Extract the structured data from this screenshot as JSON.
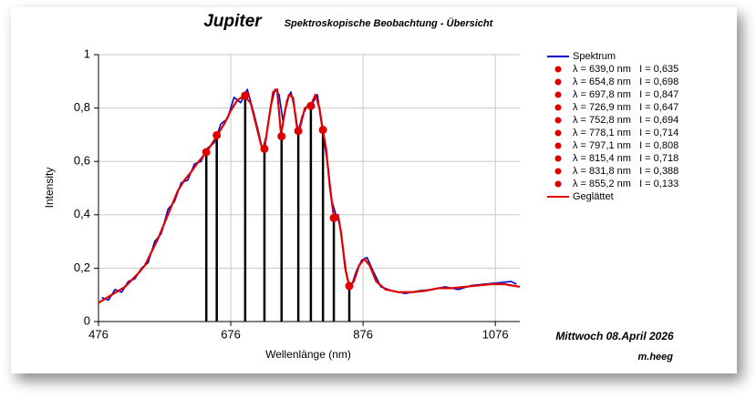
{
  "chart_data": {
    "type": "line",
    "title": "Jupiter",
    "subtitle": "Spektroskopische Beobachtung - Übersicht",
    "annotations": [
      "Mittwoch 08.April 2026",
      "m.heeg"
    ],
    "x_label": "Wellenlänge (nm)",
    "y_label": "Intensity",
    "xlim": [
      476,
      1113
    ],
    "ylim": [
      0,
      1
    ],
    "xticks": [
      476,
      676,
      876,
      1076
    ],
    "yticks": [
      0,
      {
        "value": 0.2,
        "label": "0,2"
      },
      {
        "value": 0.4,
        "label": "0,4"
      },
      {
        "value": 0.6,
        "label": "0,6"
      },
      {
        "value": 0.8,
        "label": "0,8"
      },
      1
    ],
    "grid": true,
    "stem_color": "#000000",
    "series": [
      {
        "name": "Spektrum",
        "style": "line",
        "color": "#0000cc",
        "x": [
          481,
          491,
          501,
          511,
          521,
          531,
          541,
          551,
          561,
          571,
          581,
          591,
          601,
          611,
          621,
          631,
          641,
          651,
          661,
          671,
          681,
          691,
          701,
          711,
          719,
          724,
          730,
          736,
          743,
          749,
          755,
          761,
          767,
          773,
          778,
          784,
          792,
          800,
          807,
          812,
          817,
          823,
          829,
          835,
          840,
          846,
          852,
          858,
          866,
          874,
          882,
          891,
          903,
          920,
          940,
          960,
          980,
          1000,
          1020,
          1040,
          1060,
          1080,
          1100,
          1108
        ],
        "values": [
          0.09,
          0.08,
          0.12,
          0.11,
          0.15,
          0.16,
          0.2,
          0.22,
          0.3,
          0.33,
          0.42,
          0.45,
          0.52,
          0.53,
          0.59,
          0.6,
          0.65,
          0.67,
          0.74,
          0.76,
          0.84,
          0.82,
          0.87,
          0.78,
          0.7,
          0.64,
          0.7,
          0.8,
          0.87,
          0.85,
          0.75,
          0.83,
          0.86,
          0.79,
          0.71,
          0.77,
          0.81,
          0.82,
          0.85,
          0.76,
          0.68,
          0.58,
          0.45,
          0.4,
          0.37,
          0.27,
          0.16,
          0.13,
          0.19,
          0.23,
          0.24,
          0.19,
          0.13,
          0.115,
          0.105,
          0.115,
          0.12,
          0.13,
          0.12,
          0.135,
          0.14,
          0.145,
          0.15,
          0.14
        ]
      },
      {
        "name": "λ = 639,0 nm   I = 0,635",
        "style": "point",
        "color": "#e00000",
        "x": [
          639.0
        ],
        "values": [
          0.635
        ]
      },
      {
        "name": "λ = 654,8 nm   I = 0,698",
        "style": "point",
        "color": "#e00000",
        "x": [
          654.8
        ],
        "values": [
          0.698
        ]
      },
      {
        "name": "λ = 697,8 nm   I = 0,847",
        "style": "point",
        "color": "#e00000",
        "x": [
          697.8
        ],
        "values": [
          0.847
        ]
      },
      {
        "name": "λ = 726,9 nm   I = 0,647",
        "style": "point",
        "color": "#e00000",
        "x": [
          726.9
        ],
        "values": [
          0.647
        ]
      },
      {
        "name": "λ = 752,8 nm   I = 0,694",
        "style": "point",
        "color": "#e00000",
        "x": [
          752.8
        ],
        "values": [
          0.694
        ]
      },
      {
        "name": "λ = 778,1 nm   I = 0,714",
        "style": "point",
        "color": "#e00000",
        "x": [
          778.1
        ],
        "values": [
          0.714
        ]
      },
      {
        "name": "λ = 797,1 nm   I = 0,808",
        "style": "point",
        "color": "#e00000",
        "x": [
          797.1
        ],
        "values": [
          0.808
        ]
      },
      {
        "name": "λ = 815,4 nm   I = 0,718",
        "style": "point",
        "color": "#e00000",
        "x": [
          815.4
        ],
        "values": [
          0.718
        ]
      },
      {
        "name": "λ = 831,8 nm   I = 0,388",
        "style": "point",
        "color": "#e00000",
        "x": [
          831.8
        ],
        "values": [
          0.388
        ]
      },
      {
        "name": "λ = 855,2 nm   I = 0,133",
        "style": "point",
        "color": "#e00000",
        "x": [
          855.2
        ],
        "values": [
          0.133
        ]
      },
      {
        "name": "Geglättet",
        "style": "line",
        "color": "#e00000",
        "x": [
          476,
          486,
          496,
          506,
          516,
          526,
          536,
          546,
          556,
          566,
          576,
          586,
          596,
          606,
          616,
          626,
          636,
          646,
          656,
          666,
          676,
          686,
          696,
          706,
          716,
          722,
          727,
          733,
          740,
          746,
          752,
          758,
          764,
          770,
          776,
          780,
          788,
          797,
          804,
          810,
          815,
          820,
          826,
          832,
          838,
          843,
          849,
          855,
          862,
          870,
          878,
          886,
          896,
          910,
          930,
          950,
          970,
          990,
          1010,
          1030,
          1050,
          1070,
          1090,
          1113
        ],
        "values": [
          0.07,
          0.085,
          0.1,
          0.115,
          0.13,
          0.155,
          0.18,
          0.21,
          0.26,
          0.31,
          0.37,
          0.43,
          0.49,
          0.53,
          0.56,
          0.595,
          0.625,
          0.66,
          0.7,
          0.74,
          0.79,
          0.83,
          0.845,
          0.82,
          0.72,
          0.66,
          0.647,
          0.75,
          0.86,
          0.87,
          0.7,
          0.79,
          0.85,
          0.84,
          0.73,
          0.72,
          0.8,
          0.81,
          0.85,
          0.8,
          0.72,
          0.65,
          0.5,
          0.39,
          0.4,
          0.33,
          0.2,
          0.133,
          0.15,
          0.21,
          0.235,
          0.21,
          0.15,
          0.12,
          0.11,
          0.11,
          0.115,
          0.125,
          0.125,
          0.13,
          0.135,
          0.14,
          0.14,
          0.13
        ]
      }
    ]
  }
}
